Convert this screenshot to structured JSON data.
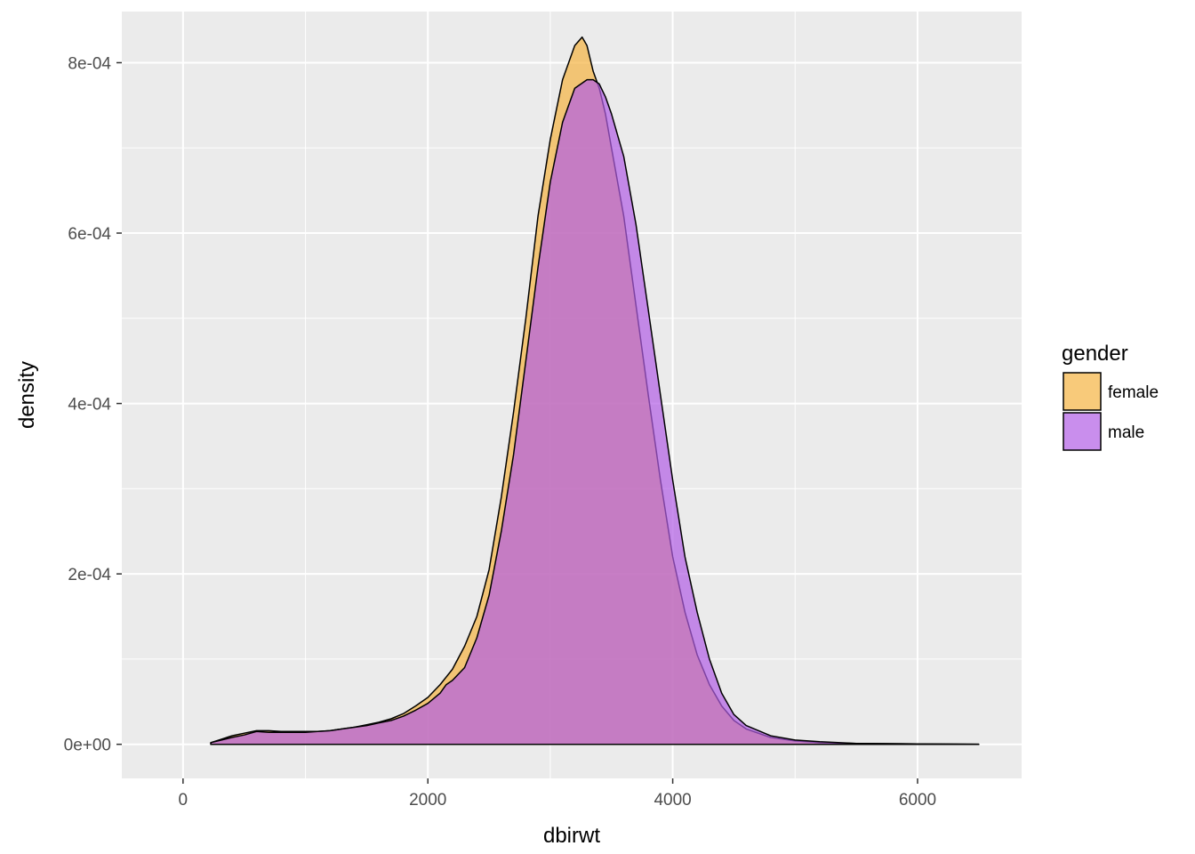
{
  "chart_data": {
    "type": "area",
    "subtype": "density",
    "title": "",
    "xlabel": "dbirwt",
    "ylabel": "density",
    "xlim": [
      -500,
      6850
    ],
    "ylim": [
      -4e-05,
      0.00086
    ],
    "x_ticks": [
      0,
      2000,
      4000,
      6000
    ],
    "x_tick_labels": [
      "0",
      "2000",
      "4000",
      "6000"
    ],
    "y_ticks": [
      0,
      0.0002,
      0.0004,
      0.0006,
      0.0008
    ],
    "y_tick_labels": [
      "0e+00",
      "2e-04",
      "4e-04",
      "6e-04",
      "8e-04"
    ],
    "grid": true,
    "panel_background": "#ebebeb",
    "legend": {
      "title": "gender",
      "position": "right"
    },
    "series": [
      {
        "name": "female",
        "color": "#f5b342",
        "fill_opacity": 0.7,
        "x": [
          227,
          400,
          500,
          600,
          700,
          800,
          900,
          1000,
          1100,
          1200,
          1300,
          1400,
          1500,
          1600,
          1700,
          1800,
          1900,
          2000,
          2100,
          2200,
          2300,
          2400,
          2500,
          2600,
          2700,
          2800,
          2900,
          3000,
          3100,
          3200,
          3260,
          3300,
          3350,
          3400,
          3450,
          3500,
          3600,
          3700,
          3800,
          3900,
          4000,
          4100,
          4200,
          4300,
          4400,
          4500,
          4600,
          4800,
          5000,
          5200,
          5500,
          6000,
          6500
        ],
        "y": [
          2e-06,
          1e-05,
          1.3e-05,
          1.6e-05,
          1.6e-05,
          1.5e-05,
          1.5e-05,
          1.5e-05,
          1.5e-05,
          1.6e-05,
          1.8e-05,
          2e-05,
          2.3e-05,
          2.6e-05,
          3e-05,
          3.6e-05,
          4.5e-05,
          5.5e-05,
          7e-05,
          8.8e-05,
          0.000115,
          0.00015,
          0.000205,
          0.00029,
          0.00039,
          0.0005,
          0.00062,
          0.00071,
          0.00078,
          0.00082,
          0.00083,
          0.00082,
          0.00079,
          0.00077,
          0.00074,
          0.0007,
          0.00062,
          0.000515,
          0.00041,
          0.00031,
          0.00022,
          0.000155,
          0.000105,
          7e-05,
          4.5e-05,
          2.8e-05,
          1.8e-05,
          8e-06,
          4e-06,
          2e-06,
          1e-06,
          5e-07,
          1e-07
        ]
      },
      {
        "name": "male",
        "color": "#b25ee6",
        "fill_opacity": 0.7,
        "x": [
          227,
          400,
          500,
          600,
          700,
          800,
          900,
          1000,
          1100,
          1200,
          1300,
          1400,
          1500,
          1600,
          1700,
          1800,
          1900,
          2000,
          2100,
          2150,
          2200,
          2300,
          2400,
          2500,
          2600,
          2700,
          2800,
          2900,
          3000,
          3100,
          3200,
          3300,
          3350,
          3400,
          3450,
          3500,
          3600,
          3700,
          3800,
          3900,
          4000,
          4100,
          4200,
          4300,
          4400,
          4500,
          4600,
          4800,
          5000,
          5200,
          5500,
          6000,
          6500
        ],
        "y": [
          2e-06,
          8e-06,
          1.1e-05,
          1.5e-05,
          1.4e-05,
          1.4e-05,
          1.4e-05,
          1.4e-05,
          1.5e-05,
          1.6e-05,
          1.8e-05,
          2e-05,
          2.2e-05,
          2.5e-05,
          2.8e-05,
          3.3e-05,
          4e-05,
          4.8e-05,
          6e-05,
          7e-05,
          7.5e-05,
          9e-05,
          0.000125,
          0.000175,
          0.00025,
          0.00034,
          0.00045,
          0.00056,
          0.00066,
          0.00073,
          0.00077,
          0.00078,
          0.00078,
          0.000775,
          0.00076,
          0.00074,
          0.00069,
          0.00061,
          0.00051,
          0.00041,
          0.00031,
          0.00022,
          0.000155,
          0.0001,
          6e-05,
          3.5e-05,
          2.2e-05,
          1e-05,
          5e-06,
          3e-06,
          1e-06,
          5e-07,
          1e-07
        ]
      }
    ]
  }
}
